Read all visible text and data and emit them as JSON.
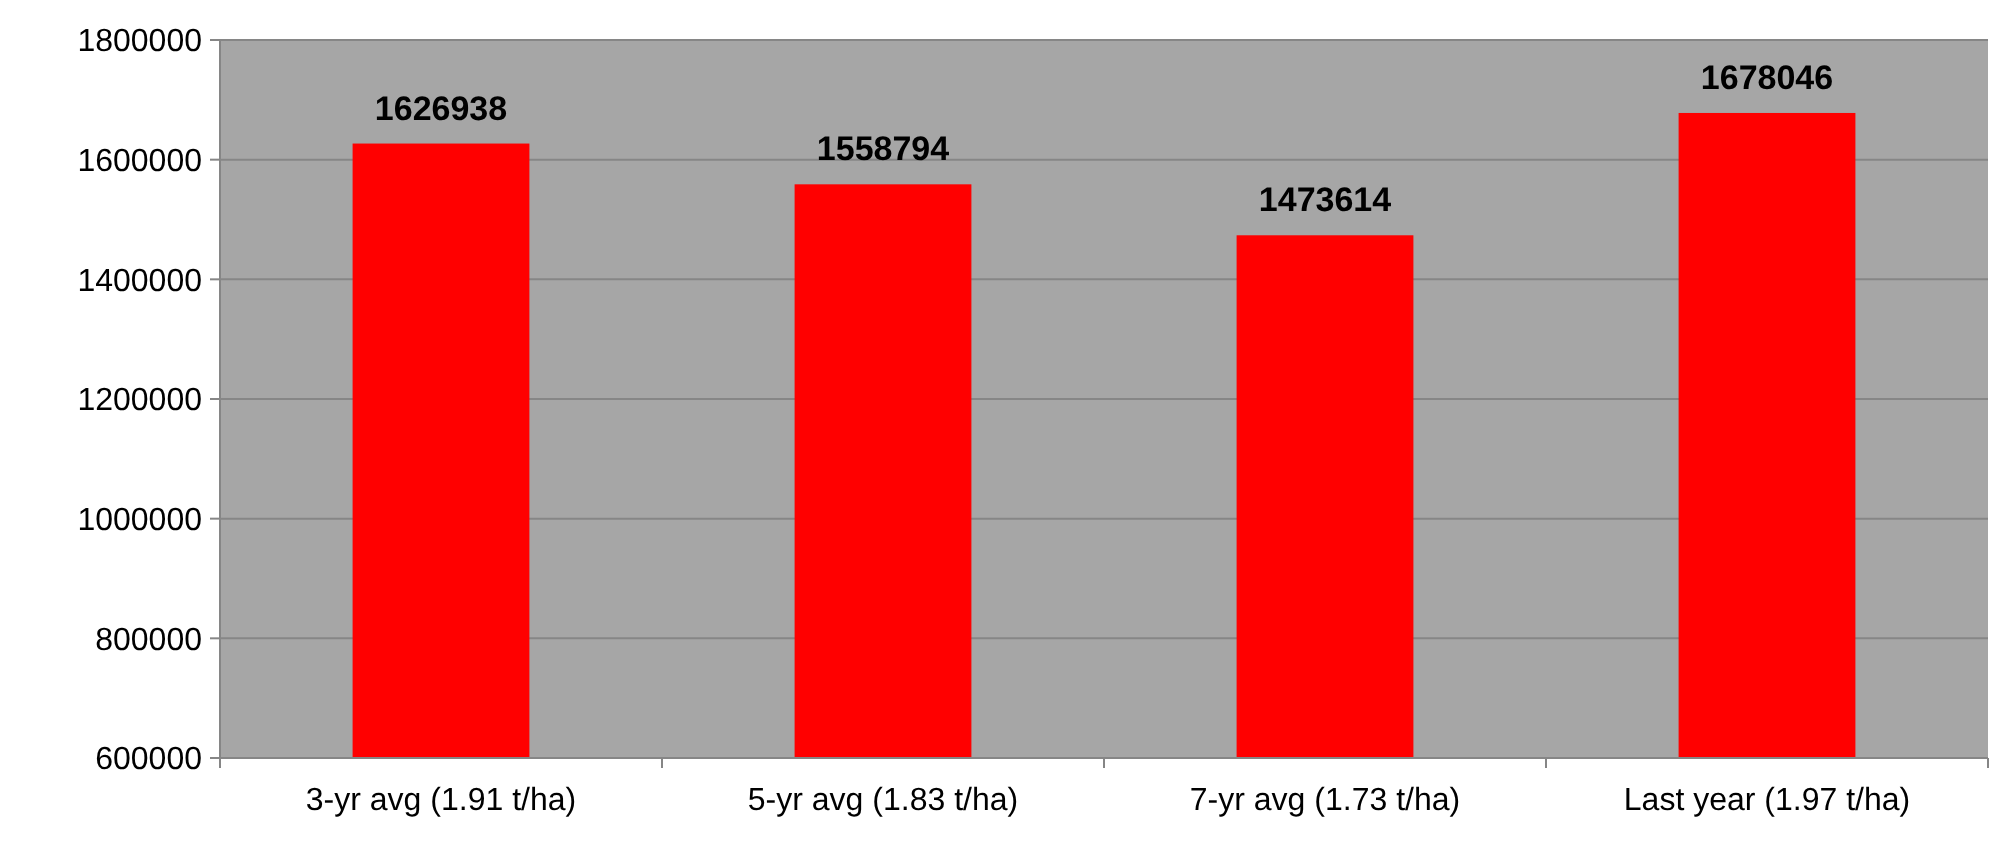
{
  "chart_data": {
    "type": "bar",
    "categories": [
      "3-yr avg (1.91 t/ha)",
      "5-yr avg (1.83 t/ha)",
      "7-yr avg (1.73 t/ha)",
      "Last year (1.97 t/ha)"
    ],
    "values": [
      1626938,
      1558794,
      1473614,
      1678046
    ],
    "color": "#ff0000",
    "ylim": [
      600000,
      1800000
    ],
    "yticks": [
      600000,
      800000,
      1000000,
      1200000,
      1400000,
      1600000,
      1800000
    ],
    "grid": "y",
    "data_labels": true
  }
}
